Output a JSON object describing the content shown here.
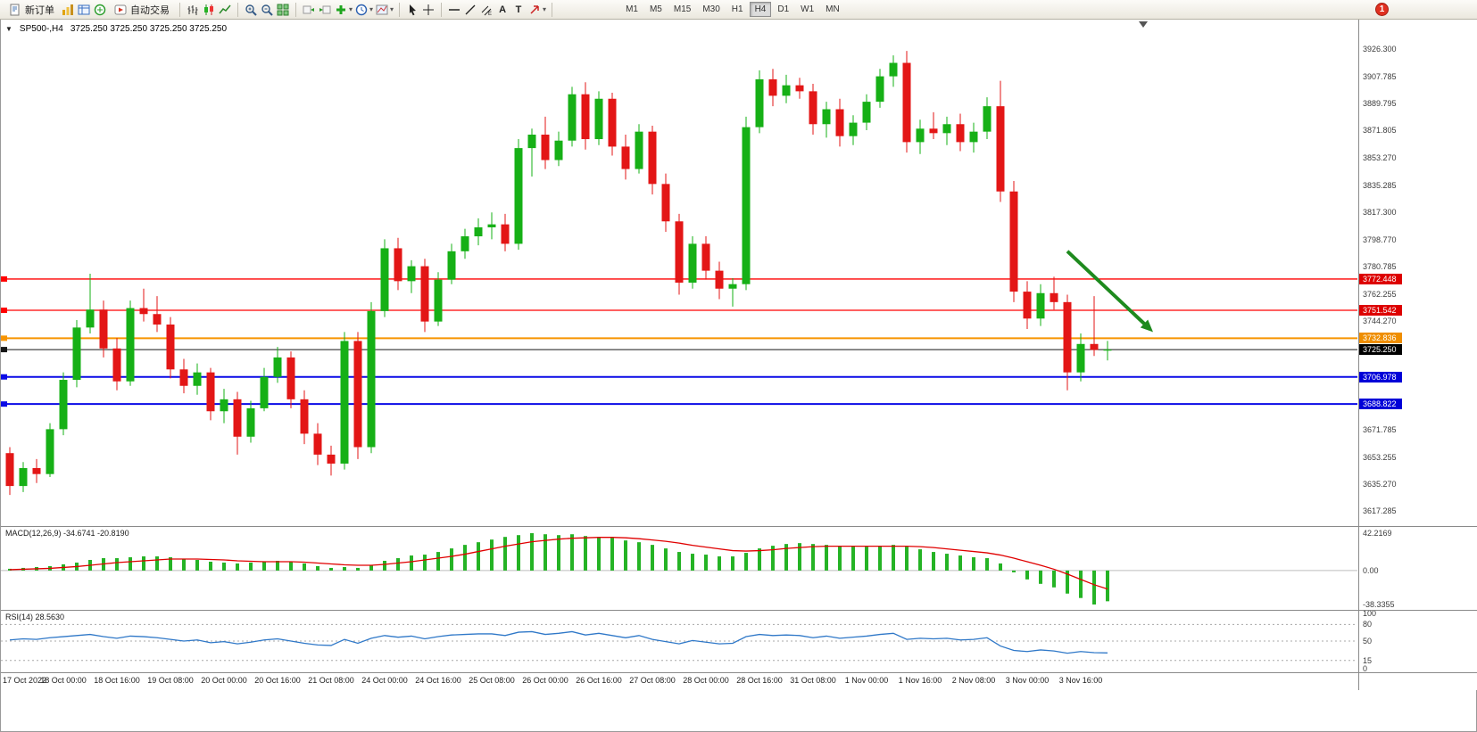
{
  "glyphs": {
    "caret": "▾",
    "collapse": "▼",
    "text_tool": "A",
    "label_tool": "T"
  },
  "toolbar": {
    "new_order_label": "新订单",
    "auto_trading_label": "自动交易",
    "timeframes": [
      "M1",
      "M5",
      "M15",
      "M30",
      "H1",
      "H4",
      "D1",
      "W1",
      "MN"
    ],
    "active_timeframe": "H4",
    "notification_count": "1"
  },
  "chart": {
    "symbol_title": "SP500-,H4",
    "ohlc_readout": "3725.250 3725.250 3725.250 3725.250",
    "shift_marker_x": 1275,
    "price_axis_labels": [
      {
        "value": 3926.3,
        "label": "3926.300"
      },
      {
        "value": 3907.785,
        "label": "3907.785"
      },
      {
        "value": 3889.795,
        "label": "3889.795"
      },
      {
        "value": 3871.805,
        "label": "3871.805"
      },
      {
        "value": 3853.27,
        "label": "3853.270"
      },
      {
        "value": 3835.285,
        "label": "3835.285"
      },
      {
        "value": 3817.3,
        "label": "3817.300"
      },
      {
        "value": 3798.77,
        "label": "3798.770"
      },
      {
        "value": 3780.785,
        "label": "3780.785"
      },
      {
        "value": 3762.255,
        "label": "3762.255"
      },
      {
        "value": 3744.27,
        "label": "3744.270"
      },
      {
        "value": 3671.785,
        "label": "3671.785"
      },
      {
        "value": 3653.255,
        "label": "3653.255"
      },
      {
        "value": 3635.27,
        "label": "3635.270"
      },
      {
        "value": 3617.285,
        "label": "3617.285"
      }
    ],
    "date_axis_labels": [
      "17 Oct 2022",
      "18 Oct 00:00",
      "18 Oct 16:00",
      "19 Oct 08:00",
      "20 Oct 00:00",
      "20 Oct 16:00",
      "21 Oct 08:00",
      "24 Oct 00:00",
      "24 Oct 16:00",
      "25 Oct 08:00",
      "26 Oct 00:00",
      "26 Oct 16:00",
      "27 Oct 08:00",
      "28 Oct 00:00",
      "28 Oct 16:00",
      "31 Oct 08:00",
      "1 Nov 00:00",
      "1 Nov 16:00",
      "2 Nov 08:00",
      "3 Nov 00:00",
      "3 Nov 16:00"
    ]
  },
  "chart_data": {
    "type": "candlestick",
    "symbol": "SP500-",
    "timeframe": "H4",
    "ylim": [
      3612,
      3934
    ],
    "bull_color": "#16b016",
    "bear_color": "#e31616",
    "candles": [
      [
        3656,
        3660,
        3628,
        3634
      ],
      [
        3634,
        3650,
        3630,
        3646
      ],
      [
        3646,
        3652,
        3636,
        3642
      ],
      [
        3642,
        3676,
        3640,
        3672
      ],
      [
        3672,
        3710,
        3668,
        3705
      ],
      [
        3705,
        3745,
        3700,
        3740
      ],
      [
        3740,
        3776,
        3736,
        3752
      ],
      [
        3752,
        3758,
        3720,
        3726
      ],
      [
        3726,
        3733,
        3698,
        3704
      ],
      [
        3704,
        3758,
        3701,
        3753
      ],
      [
        3753,
        3766,
        3744,
        3749
      ],
      [
        3749,
        3761,
        3737,
        3742
      ],
      [
        3742,
        3747,
        3706,
        3712
      ],
      [
        3712,
        3719,
        3696,
        3701
      ],
      [
        3701,
        3716,
        3695,
        3710
      ],
      [
        3710,
        3713,
        3678,
        3684
      ],
      [
        3684,
        3699,
        3676,
        3692
      ],
      [
        3692,
        3697,
        3655,
        3667
      ],
      [
        3667,
        3691,
        3663,
        3686
      ],
      [
        3686,
        3713,
        3684,
        3707
      ],
      [
        3707,
        3727,
        3703,
        3720
      ],
      [
        3720,
        3724,
        3686,
        3692
      ],
      [
        3692,
        3698,
        3662,
        3669
      ],
      [
        3669,
        3676,
        3648,
        3655
      ],
      [
        3655,
        3661,
        3641,
        3649
      ],
      [
        3649,
        3737,
        3645,
        3731
      ],
      [
        3731,
        3737,
        3652,
        3660
      ],
      [
        3660,
        3757,
        3656,
        3751
      ],
      [
        3751,
        3799,
        3747,
        3793
      ],
      [
        3793,
        3800,
        3765,
        3771
      ],
      [
        3771,
        3785,
        3763,
        3781
      ],
      [
        3781,
        3786,
        3737,
        3744
      ],
      [
        3744,
        3777,
        3741,
        3772
      ],
      [
        3772,
        3796,
        3769,
        3791
      ],
      [
        3791,
        3806,
        3786,
        3801
      ],
      [
        3801,
        3813,
        3795,
        3807
      ],
      [
        3807,
        3817,
        3799,
        3809
      ],
      [
        3809,
        3816,
        3791,
        3796
      ],
      [
        3796,
        3866,
        3792,
        3860
      ],
      [
        3860,
        3873,
        3841,
        3869
      ],
      [
        3869,
        3881,
        3846,
        3852
      ],
      [
        3852,
        3871,
        3848,
        3865
      ],
      [
        3865,
        3901,
        3861,
        3896
      ],
      [
        3896,
        3904,
        3859,
        3866
      ],
      [
        3866,
        3898,
        3862,
        3893
      ],
      [
        3893,
        3897,
        3855,
        3861
      ],
      [
        3861,
        3869,
        3839,
        3846
      ],
      [
        3846,
        3876,
        3843,
        3871
      ],
      [
        3871,
        3875,
        3829,
        3836
      ],
      [
        3836,
        3843,
        3804,
        3811
      ],
      [
        3811,
        3816,
        3762,
        3770
      ],
      [
        3770,
        3801,
        3766,
        3796
      ],
      [
        3796,
        3801,
        3772,
        3778
      ],
      [
        3778,
        3784,
        3759,
        3766
      ],
      [
        3766,
        3773,
        3754,
        3769
      ],
      [
        3769,
        3881,
        3765,
        3874
      ],
      [
        3874,
        3912,
        3870,
        3906
      ],
      [
        3906,
        3913,
        3888,
        3895
      ],
      [
        3895,
        3909,
        3890,
        3902
      ],
      [
        3902,
        3907,
        3893,
        3898
      ],
      [
        3898,
        3903,
        3869,
        3876
      ],
      [
        3876,
        3891,
        3867,
        3886
      ],
      [
        3886,
        3893,
        3861,
        3868
      ],
      [
        3868,
        3882,
        3862,
        3877
      ],
      [
        3877,
        3896,
        3872,
        3891
      ],
      [
        3891,
        3913,
        3887,
        3908
      ],
      [
        3908,
        3922,
        3901,
        3917
      ],
      [
        3917,
        3925,
        3857,
        3864
      ],
      [
        3864,
        3879,
        3856,
        3873
      ],
      [
        3873,
        3884,
        3866,
        3870
      ],
      [
        3870,
        3881,
        3862,
        3876
      ],
      [
        3876,
        3883,
        3858,
        3864
      ],
      [
        3864,
        3877,
        3857,
        3871
      ],
      [
        3871,
        3894,
        3866,
        3888
      ],
      [
        3888,
        3905,
        3824,
        3831
      ],
      [
        3831,
        3838,
        3757,
        3764
      ],
      [
        3764,
        3771,
        3739,
        3746
      ],
      [
        3746,
        3769,
        3741,
        3763
      ],
      [
        3763,
        3774,
        3752,
        3757
      ],
      [
        3757,
        3762,
        3698,
        3710
      ],
      [
        3710,
        3736,
        3704,
        3729
      ],
      [
        3729,
        3761,
        3721,
        3725
      ],
      [
        3725,
        3731,
        3718,
        3725.25
      ]
    ],
    "hlines": [
      {
        "value": 3772.448,
        "label": "3772.448",
        "color": "#ff0000",
        "width": 1.3,
        "tag_bg": "#dd0000"
      },
      {
        "value": 3751.542,
        "label": "3751.542",
        "color": "#ff0000",
        "width": 1.3,
        "tag_bg": "#dd0000"
      },
      {
        "value": 3732.836,
        "label": "3732.836",
        "color": "#f79400",
        "width": 2,
        "tag_bg": "#ef8e00"
      },
      {
        "value": 3725.25,
        "label": "3725.250",
        "color": "#161616",
        "width": 1,
        "tag_bg": "#000000"
      },
      {
        "value": 3706.978,
        "label": "3706.978",
        "color": "#0a0ae6",
        "width": 2,
        "tag_bg": "#0000d8"
      },
      {
        "value": 3688.822,
        "label": "3688.822",
        "color": "#0a0ae6",
        "width": 2,
        "tag_bg": "#0000d8"
      }
    ],
    "arrow": {
      "from_index": 79,
      "from_price": 3791,
      "to_index": 85.4,
      "to_price": 3737,
      "color": "#1e8a1e"
    }
  },
  "macd": {
    "label": "MACD(12,26,9) -34.6741 -20.8190",
    "current_value": "-34.6741",
    "current_signal": "-20.8190",
    "range": [
      -38.3355,
      42.2169
    ],
    "axis_labels": [
      {
        "value": 42.2169,
        "label": "42.2169"
      },
      {
        "value": 0,
        "label": "0.00"
      },
      {
        "value": -38.3355,
        "label": "-38.3355"
      }
    ],
    "histogram_color": "#25b325",
    "signal_color": "#e00000",
    "histogram": [
      2,
      3,
      4,
      5,
      7,
      9,
      12,
      14,
      14,
      15,
      16,
      16,
      15,
      13,
      12,
      10,
      9,
      8,
      9,
      10,
      11,
      10,
      8,
      5,
      3,
      4,
      3,
      6,
      11,
      14,
      17,
      18,
      21,
      25,
      29,
      32,
      35,
      38,
      40,
      42.2,
      41,
      40,
      41,
      39,
      38,
      37,
      34,
      32,
      29,
      25,
      21,
      19,
      18,
      16,
      16,
      20,
      25,
      28,
      30,
      31,
      30,
      29,
      28,
      27,
      27,
      28,
      29,
      27,
      24,
      21,
      19,
      17,
      15,
      14,
      8,
      -2,
      -10,
      -15,
      -19,
      -26,
      -31,
      -38.34,
      -34.67
    ],
    "signal": [
      1,
      1.5,
      2,
      2.5,
      3.5,
      4.5,
      6,
      7.5,
      9,
      10,
      11,
      12,
      13,
      13,
      13,
      12.5,
      12,
      11,
      10.5,
      10,
      10,
      10,
      9.5,
      8.5,
      7.5,
      6.5,
      6,
      6,
      7,
      8.5,
      10,
      12,
      14,
      16,
      18.5,
      21.5,
      24.5,
      27.5,
      30,
      32.5,
      34,
      35.5,
      36.5,
      37,
      37.5,
      37.5,
      37,
      36,
      34.5,
      33,
      31,
      28.5,
      26.5,
      24.5,
      22.5,
      22,
      22.5,
      23.5,
      25,
      26,
      27,
      27.5,
      27.5,
      27.5,
      27.5,
      27.5,
      27.5,
      27.5,
      27,
      26,
      24.5,
      23,
      21.5,
      20,
      17.5,
      14,
      10,
      6,
      1.5,
      -4,
      -10,
      -16,
      -20.82
    ]
  },
  "rsi": {
    "label": "RSI(14) 28.5630",
    "current_value": "28.5630",
    "line_color": "#2f78c8",
    "levels": [
      80,
      50,
      15
    ],
    "axis_labels": [
      {
        "value": 100,
        "label": "100"
      },
      {
        "value": 80,
        "label": "80"
      },
      {
        "value": 50,
        "label": "50"
      },
      {
        "value": 15,
        "label": "15"
      },
      {
        "value": 0,
        "label": "0"
      }
    ],
    "values": [
      52,
      54,
      53,
      56,
      58,
      60,
      62,
      58,
      55,
      59,
      58,
      56,
      53,
      50,
      52,
      47,
      49,
      45,
      48,
      52,
      54,
      50,
      46,
      43,
      42,
      53,
      46,
      55,
      60,
      57,
      59,
      54,
      58,
      61,
      62,
      63,
      63,
      60,
      66,
      67,
      62,
      64,
      67,
      61,
      64,
      60,
      56,
      60,
      53,
      49,
      45,
      51,
      48,
      45,
      46,
      58,
      62,
      60,
      61,
      60,
      56,
      59,
      55,
      57,
      59,
      62,
      64,
      53,
      55,
      54,
      55,
      52,
      53,
      56,
      41,
      33,
      31,
      34,
      32,
      28,
      31,
      29,
      28.56
    ]
  }
}
